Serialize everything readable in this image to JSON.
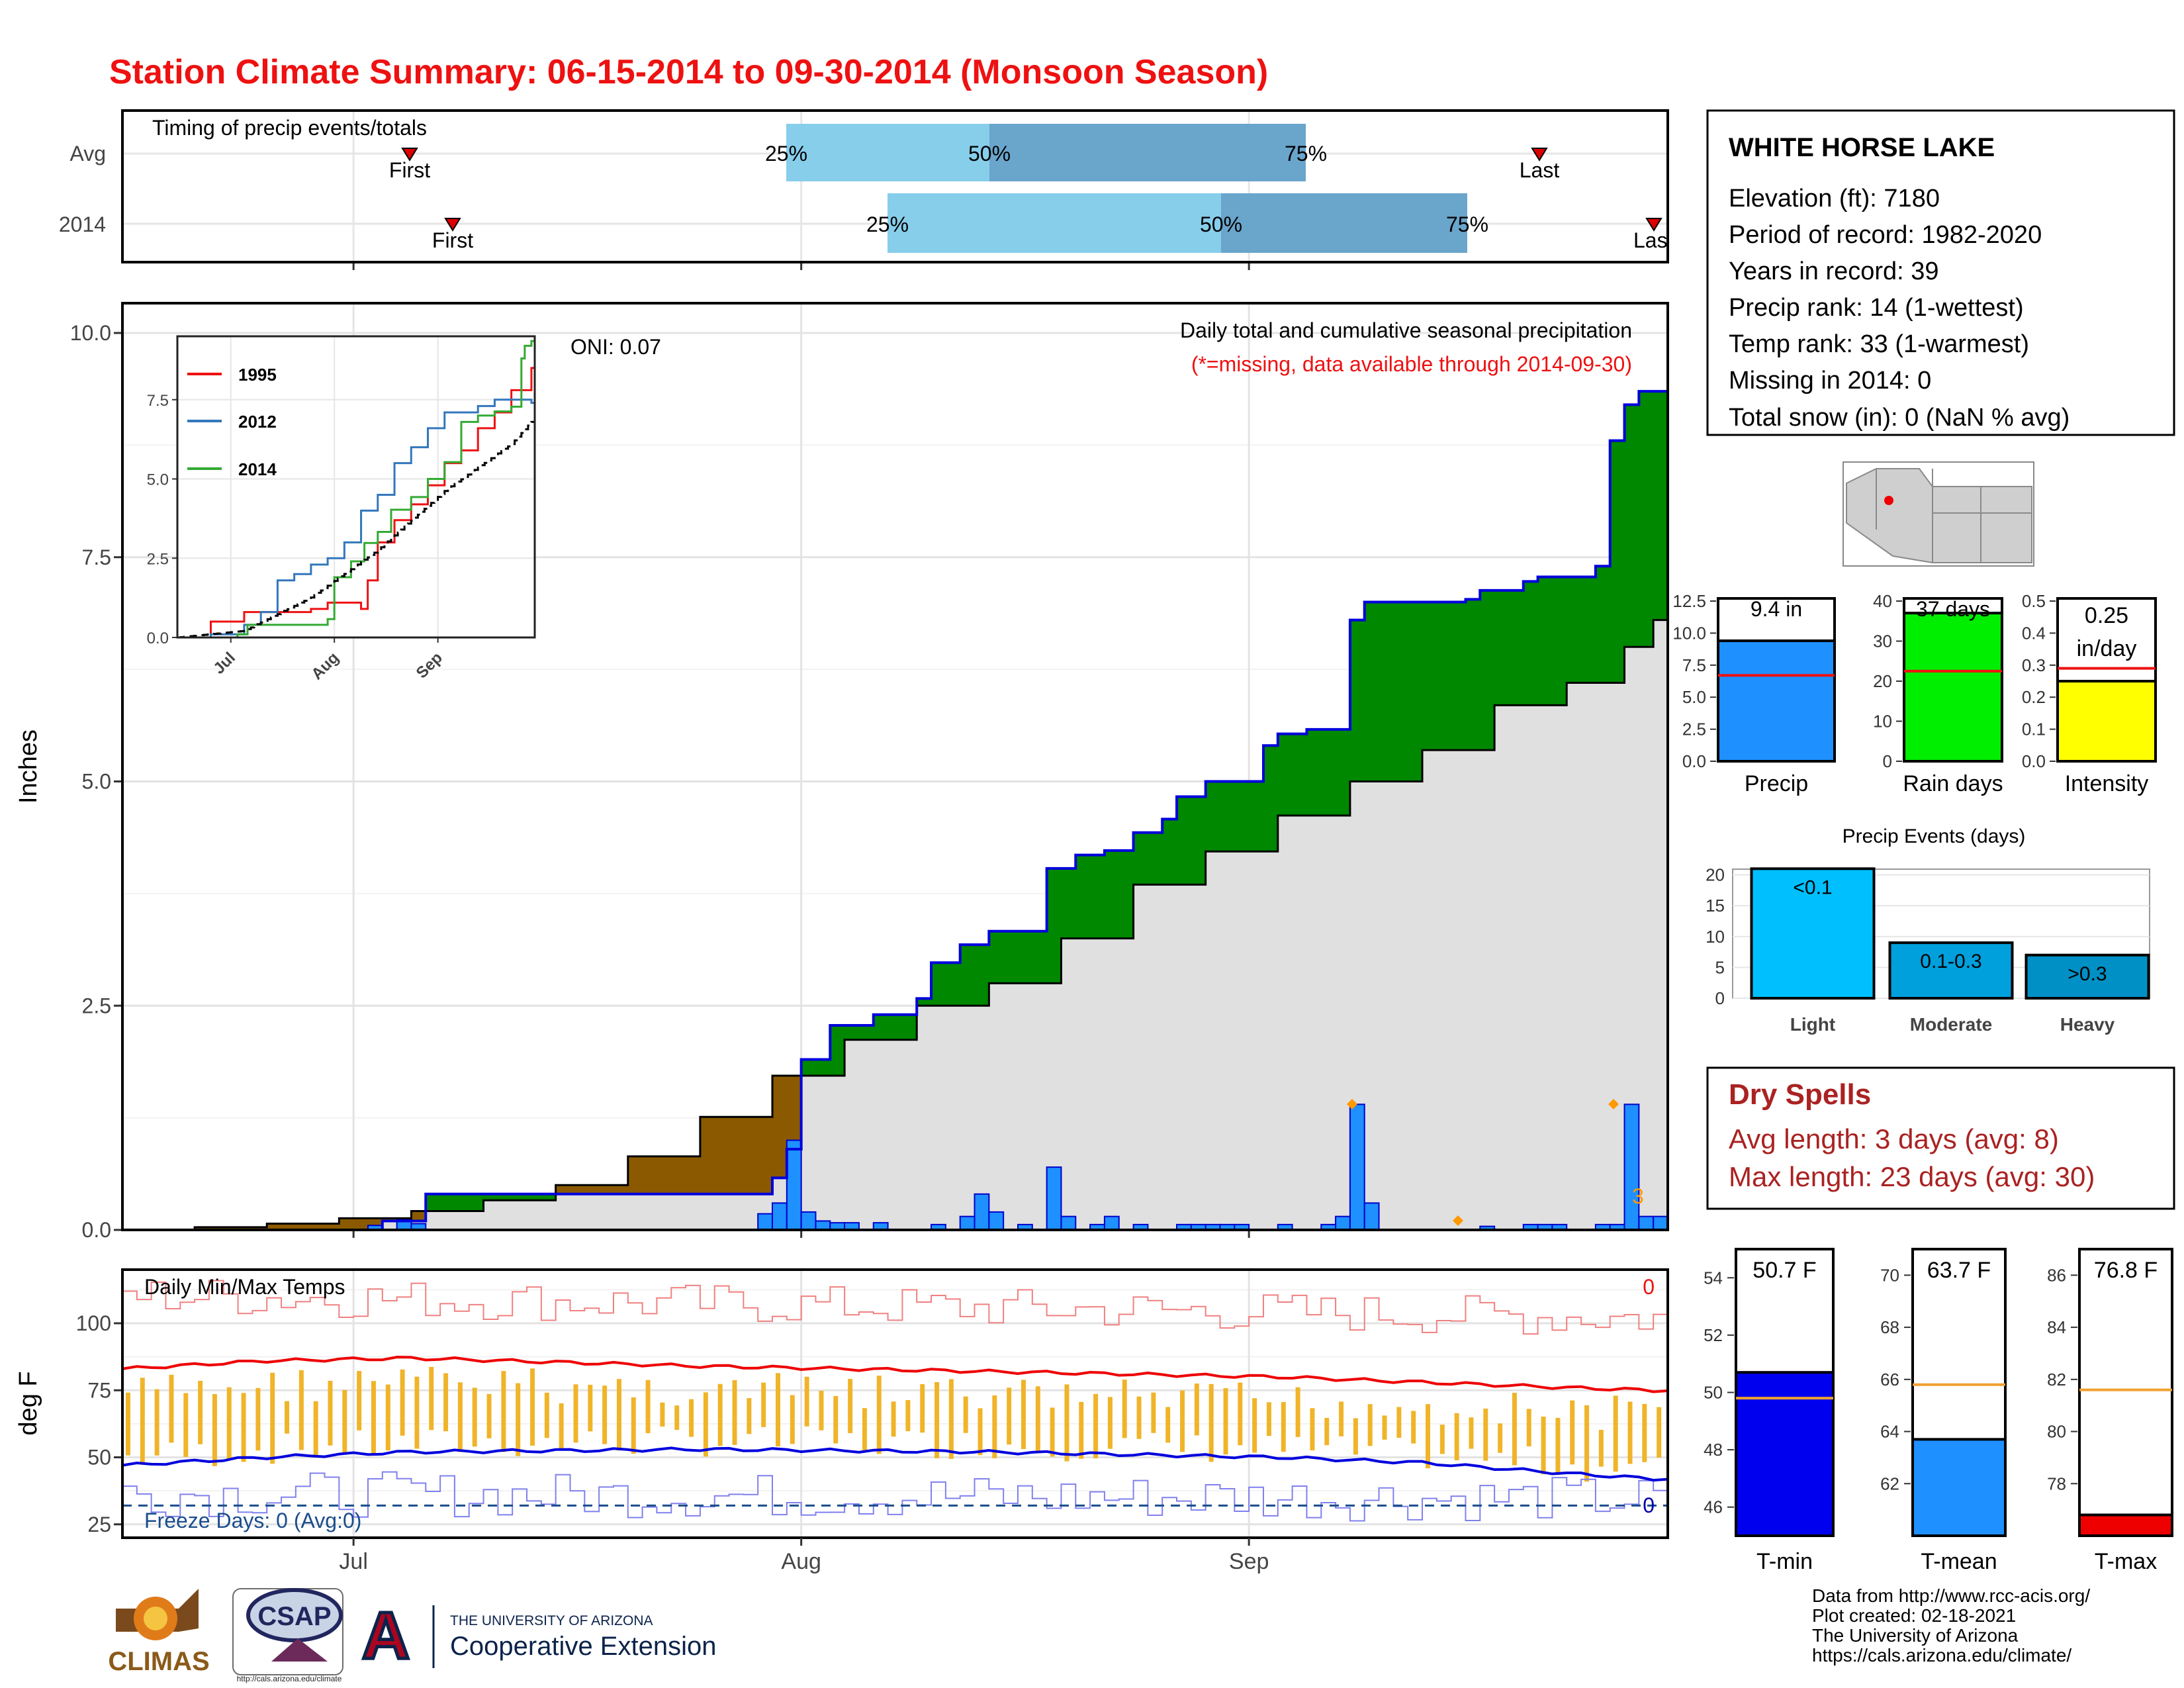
{
  "title": "Station Climate Summary: 06-15-2014 to 09-30-2014 (Monsoon Season)",
  "colors": {
    "title": "#ee1111",
    "above_avg_fill": "#008800",
    "below_avg_fill": "#8B5A00",
    "avg_fill": "#e0e0e0",
    "daily_bar": "#1e90ff",
    "quartile_light": "#87ceeb",
    "quartile_dark": "#6aa5cc",
    "dry_spell_text": "#aa2222"
  },
  "timing_panel": {
    "title": "Timing of precip events/totals",
    "row_labels": [
      "Avg",
      "2014"
    ],
    "first_label": "First",
    "last_label": "Last",
    "last_label_clipped": "Las",
    "q25": "25%",
    "q50": "50%",
    "q75": "75%",
    "rows": [
      {
        "name": "Avg",
        "first": "2014-06-29",
        "q25": "2014-07-30",
        "q50": "2014-08-06",
        "q75": "2014-08-17",
        "last": "2014-09-21"
      },
      {
        "name": "2014",
        "first": "2014-07-02",
        "q25": "2014-08-03",
        "q50": "2014-08-26",
        "q75": "2014-09-11",
        "last": "2014-09-30"
      }
    ]
  },
  "main_panel": {
    "ylabel": "Inches",
    "oni": "ONI: 0.07",
    "subtitle": "Daily total and cumulative seasonal precipitation",
    "missing_note": "(*=missing, data available through 2014-09-30)",
    "month_labels": [
      "Jul",
      "Aug",
      "Sep"
    ],
    "yticks": [
      "0.0",
      "2.5",
      "5.0",
      "7.5",
      "10.0"
    ],
    "last_bar_count": "3"
  },
  "inset": {
    "legend": [
      "1995",
      "2012",
      "2014"
    ],
    "yticks": [
      "0.0",
      "2.5",
      "5.0",
      "7.5"
    ],
    "xticks": [
      "Jul",
      "Aug",
      "Sep"
    ]
  },
  "temp_panel": {
    "ylabel": "deg F",
    "title": "Daily Min/Max Temps",
    "freeze": "Freeze Days: 0 (Avg:0)",
    "max_count": "0",
    "min_count": "0",
    "yticks": [
      "25",
      "50",
      "75",
      "100"
    ],
    "xticks": [
      "Jul",
      "Aug",
      "Sep"
    ]
  },
  "station": {
    "name": "WHITE HORSE LAKE",
    "lines": [
      "Elevation (ft): 7180",
      "Period of record: 1982-2020",
      "Years in record: 39",
      "Precip rank: 14 (1-wettest)",
      "Temp rank: 33 (1-warmest)",
      "Missing in 2014: 0",
      "Total snow (in): 0 (NaN % avg)"
    ]
  },
  "gauges": [
    {
      "label": "Precip",
      "value_text": "9.4 in",
      "value": 9.4,
      "avg": 6.7,
      "ymax": 12.5,
      "ticks": [
        "0.0",
        "2.5",
        "5.0",
        "7.5",
        "10.0",
        "12.5"
      ],
      "color": "#1e90ff"
    },
    {
      "label": "Rain days",
      "value_text": "37 days",
      "value": 37,
      "avg": 22.5,
      "ymax": 40,
      "ticks": [
        "0",
        "10",
        "20",
        "30",
        "40"
      ],
      "color": "#00ee00"
    },
    {
      "label": "Intensity",
      "value_text": "0.25 in/day",
      "value_line1": "0.25",
      "value_line2": "in/day",
      "value": 0.25,
      "avg": 0.29,
      "ymax": 0.5,
      "ticks": [
        "0.0",
        "0.1",
        "0.2",
        "0.3",
        "0.4",
        "0.5"
      ],
      "color": "#ffff00"
    }
  ],
  "events": {
    "title": "Precip Events (days)",
    "bars": [
      {
        "label": "Light",
        "inner": "<0.1",
        "value": 21,
        "color": "#00bfff"
      },
      {
        "label": "Moderate",
        "inner": "0.1-0.3",
        "value": 9,
        "color": "#00a0dd"
      },
      {
        "label": "Heavy",
        "inner": ">0.3",
        "value": 7,
        "color": "#0090c5"
      }
    ],
    "yticks": [
      "0",
      "5",
      "10",
      "15",
      "20"
    ]
  },
  "dry_spells": {
    "title": "Dry Spells",
    "avg": "Avg length: 3 days (avg: 8)",
    "max": "Max length: 23 days (avg: 30)"
  },
  "temp_gauges": [
    {
      "label": "T-min",
      "value_text": "50.7 F",
      "value": 50.7,
      "avg": 49.8,
      "ymin": 45,
      "ymax": 55,
      "ticks": [
        "46",
        "48",
        "50",
        "52",
        "54"
      ],
      "color": "#0000ee"
    },
    {
      "label": "T-mean",
      "value_text": "63.7 F",
      "value": 63.7,
      "avg": 65.8,
      "ymin": 60,
      "ymax": 71,
      "ticks": [
        "62",
        "64",
        "66",
        "68",
        "70"
      ],
      "color": "#1e90ff"
    },
    {
      "label": "T-max",
      "value_text": "76.8 F",
      "value": 76.8,
      "avg": 81.6,
      "ymin": 76,
      "ymax": 87,
      "ticks": [
        "78",
        "80",
        "82",
        "84",
        "86"
      ],
      "color": "#ee0000"
    }
  ],
  "logos": {
    "climas": "CLIMAS",
    "csap": "CSAP",
    "csap_url": "http://cals.arizona.edu/climate",
    "ua_small": "THE UNIVERSITY OF ARIZONA",
    "ua_big": "Cooperative Extension",
    "ua_mark": "A"
  },
  "footer": [
    "Data from http://www.rcc-acis.org/",
    "Plot created: 02-18-2021",
    "The University of Arizona",
    "https://cals.arizona.edu/climate/"
  ],
  "chart_data": {
    "type": "area",
    "title": "Daily total and cumulative seasonal precipitation",
    "ylabel": "Inches",
    "xlim": [
      "2014-06-15",
      "2014-09-30"
    ],
    "ylim": [
      0,
      10.4
    ],
    "series": [
      {
        "name": "avg cumulative (black step line)",
        "x_day_index": [
          0,
          5,
          10,
          15,
          20,
          25,
          30,
          35,
          40,
          45,
          50,
          55,
          60,
          65,
          70,
          75,
          80,
          85,
          90,
          95,
          100,
          104,
          106
        ],
        "values": [
          0.0,
          0.03,
          0.07,
          0.13,
          0.21,
          0.33,
          0.5,
          0.82,
          1.26,
          1.72,
          2.12,
          2.5,
          2.75,
          3.25,
          3.85,
          4.22,
          4.62,
          5.0,
          5.35,
          5.85,
          6.1,
          6.5,
          6.8
        ]
      },
      {
        "name": "2014 cumulative (blue step line)",
        "x_day_index": [
          0,
          17,
          18,
          21,
          44,
          45,
          46,
          47,
          49,
          52,
          55,
          56,
          58,
          60,
          63,
          64,
          66,
          68,
          70,
          72,
          73,
          75,
          78,
          79,
          80,
          82,
          84,
          85,
          86,
          87,
          90,
          93,
          94,
          97,
          98,
          100,
          102,
          103,
          104,
          105,
          106
        ],
        "values": [
          0.0,
          0.0,
          0.1,
          0.4,
          0.4,
          0.58,
          0.9,
          1.9,
          2.28,
          2.4,
          2.58,
          2.98,
          3.18,
          3.33,
          3.33,
          4.03,
          4.18,
          4.23,
          4.43,
          4.58,
          4.83,
          5.0,
          5.0,
          5.4,
          5.53,
          5.58,
          5.58,
          6.8,
          7.0,
          7.0,
          7.0,
          7.03,
          7.13,
          7.23,
          7.28,
          7.28,
          7.4,
          8.8,
          9.2,
          9.35,
          9.35
        ]
      },
      {
        "name": "2014 daily precipitation (bars)",
        "x_day_index": [
          17,
          18,
          19,
          20,
          21,
          22,
          23,
          24,
          25,
          26,
          27,
          28,
          29,
          30,
          31,
          32,
          33,
          34,
          35,
          36,
          37,
          38,
          39,
          40,
          41,
          42,
          43,
          44,
          45,
          46,
          47,
          48,
          49,
          50,
          51,
          52,
          53,
          54,
          55,
          56,
          57,
          58,
          59,
          60,
          61,
          62,
          63,
          64,
          65,
          66,
          67,
          68,
          69,
          70,
          71,
          72,
          73,
          74,
          75,
          76,
          77,
          78,
          79,
          80,
          81,
          82,
          83,
          84,
          85,
          86,
          87,
          88,
          89,
          90,
          91,
          92,
          93,
          94,
          95,
          96,
          97,
          98,
          99,
          100,
          101,
          102,
          103,
          104,
          105,
          106
        ],
        "values": [
          0.05,
          0,
          0.12,
          0.07,
          0,
          0,
          0,
          0,
          0,
          0,
          0,
          0,
          0,
          0,
          0,
          0,
          0,
          0,
          0,
          0,
          0,
          0,
          0,
          0,
          0,
          0,
          0,
          0.18,
          0.3,
          1.0,
          0.2,
          0.1,
          0.08,
          0.08,
          0,
          0.08,
          0,
          0,
          0,
          0.06,
          0,
          0.15,
          0.4,
          0.2,
          0,
          0.06,
          0,
          0.7,
          0.15,
          0,
          0.06,
          0.15,
          0,
          0.06,
          0,
          0,
          0.06,
          0.06,
          0.06,
          0.06,
          0.06,
          0,
          0,
          0.06,
          0,
          0,
          0.06,
          0.15,
          1.4,
          0.3,
          0,
          0,
          0,
          0,
          0,
          0,
          0,
          0.04,
          0,
          0,
          0.06,
          0.06,
          0.06,
          0,
          0,
          0.06,
          0.06,
          1.4,
          0.15,
          0.15
        ]
      }
    ],
    "annotations": [
      "ONI: 0.07",
      "(*=missing, data available through 2014-09-30)"
    ],
    "inset_chart": {
      "type": "line",
      "ylim": [
        0,
        9.5
      ],
      "series": [
        {
          "name": "1995",
          "x_day_index": [
            0,
            10,
            20,
            30,
            40,
            45,
            50,
            55,
            57,
            60,
            65,
            70,
            75,
            80,
            85,
            90,
            95,
            100,
            106
          ],
          "values": [
            0.0,
            0.5,
            0.8,
            0.8,
            0.9,
            1.1,
            1.1,
            0.9,
            1.8,
            3.0,
            3.7,
            4.2,
            4.8,
            5.5,
            5.9,
            6.6,
            7.1,
            7.8,
            8.5
          ]
        },
        {
          "name": "2012",
          "x_day_index": [
            0,
            10,
            20,
            25,
            30,
            35,
            40,
            45,
            50,
            55,
            60,
            65,
            70,
            75,
            80,
            85,
            90,
            95,
            100,
            106
          ],
          "values": [
            0.0,
            0.1,
            0.4,
            0.8,
            1.8,
            2.0,
            2.3,
            2.5,
            3.0,
            4.0,
            4.5,
            5.5,
            6.0,
            6.6,
            7.1,
            7.1,
            7.3,
            7.5,
            7.5,
            7.4
          ]
        },
        {
          "name": "2014",
          "x_day_index": [
            0,
            18,
            21,
            45,
            47,
            52,
            56,
            60,
            64,
            70,
            75,
            80,
            85,
            90,
            95,
            100,
            103,
            104,
            106
          ],
          "values": [
            0.0,
            0.1,
            0.4,
            0.58,
            1.9,
            2.4,
            2.98,
            3.33,
            4.03,
            4.43,
            5.0,
            5.53,
            6.8,
            7.0,
            7.13,
            7.28,
            8.8,
            9.2,
            9.35
          ]
        },
        {
          "name": "avg (dashed)",
          "x_day_index": [
            0,
            20,
            40,
            60,
            80,
            100,
            106
          ],
          "values": [
            0.0,
            0.21,
            1.26,
            2.75,
            4.62,
            6.1,
            6.8
          ]
        }
      ]
    },
    "temperature_chart": {
      "type": "line",
      "ylabel": "deg F",
      "ylim": [
        20,
        120
      ],
      "series": [
        {
          "name": "avg max (red)",
          "x_day_index": [
            0,
            10,
            20,
            40,
            60,
            80,
            90,
            100,
            106
          ],
          "values": [
            83,
            86,
            87,
            84,
            82,
            80,
            78,
            76,
            75
          ]
        },
        {
          "name": "avg min (blue)",
          "x_day_index": [
            0,
            10,
            20,
            40,
            60,
            80,
            90,
            100,
            106
          ],
          "values": [
            47,
            50,
            52,
            53,
            52,
            50,
            48,
            44,
            42
          ]
        },
        {
          "name": "freeze threshold (dashed)",
          "values": [
            32
          ]
        },
        {
          "name": "record max (thin red)",
          "approx_range": [
            100,
            115
          ]
        },
        {
          "name": "record min (thin blue)",
          "approx_range": [
            28,
            45
          ]
        }
      ]
    },
    "gauge_charts": [
      {
        "type": "bar",
        "name": "Precip",
        "value": 9.4,
        "avg": 6.7
      },
      {
        "type": "bar",
        "name": "Rain days",
        "value": 37,
        "avg": 22.5
      },
      {
        "type": "bar",
        "name": "Intensity",
        "value": 0.25,
        "avg": 0.29
      },
      {
        "type": "bar",
        "name": "Precip Events",
        "categories": [
          "Light",
          "Moderate",
          "Heavy"
        ],
        "values": [
          21,
          9,
          7
        ]
      },
      {
        "type": "bar",
        "name": "T-min",
        "value": 50.7,
        "avg": 49.8
      },
      {
        "type": "bar",
        "name": "T-mean",
        "value": 63.7,
        "avg": 65.8
      },
      {
        "type": "bar",
        "name": "T-max",
        "value": 76.8,
        "avg": 81.6
      }
    ]
  }
}
